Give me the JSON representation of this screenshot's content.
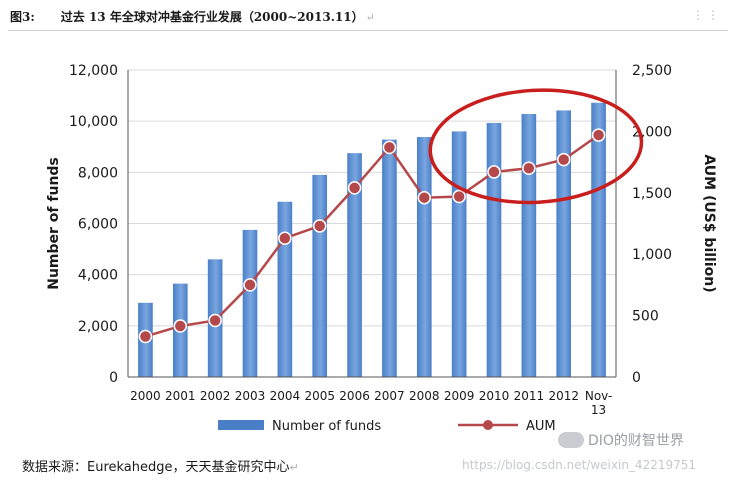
{
  "caption": {
    "figure": "图3:",
    "title": "过去 13 年全球对冲基金行业发展（2000~2013.11）",
    "mark": "↵"
  },
  "source": {
    "text": "数据来源：Eurekahedge，天天基金研究中心",
    "mark": "↵"
  },
  "watermark": {
    "text": "DIO的财智世界",
    "url": "https://blog.csdn.net/weixin_42219751"
  },
  "colors": {
    "bar": "#4a7fc8",
    "bar_light": "#7aa6df",
    "line": "#b5484b",
    "highlight": "#c81e1e",
    "grid": "#d9d9d9"
  },
  "chart_data": {
    "type": "bar",
    "categories": [
      "2000",
      "2001",
      "2002",
      "2003",
      "2004",
      "2005",
      "2006",
      "2007",
      "2008",
      "2009",
      "2010",
      "2011",
      "2012",
      "Nov-13"
    ],
    "ylabel": "Number of funds",
    "y2label": "AUM (US$ billion)",
    "ylim": [
      0,
      12000
    ],
    "y2lim": [
      0,
      2500
    ],
    "yticks": [
      "0",
      "2,000",
      "4,000",
      "6,000",
      "8,000",
      "10,000",
      "12,000"
    ],
    "y2ticks": [
      "0",
      "500",
      "1,000",
      "1,500",
      "2,000",
      "2,500"
    ],
    "grid": true,
    "legend_position": "bottom",
    "series": [
      {
        "name": "Number of funds",
        "type": "bar",
        "values": [
          2900,
          3650,
          4600,
          5750,
          6850,
          7900,
          8750,
          9280,
          9380,
          9600,
          9930,
          10280,
          10420,
          10720
        ]
      },
      {
        "name": "AUM",
        "type": "line",
        "axis": "right",
        "values": [
          330,
          415,
          460,
          750,
          1130,
          1230,
          1540,
          1870,
          1460,
          1470,
          1670,
          1700,
          1770,
          1970
        ]
      }
    ],
    "annotations": [
      {
        "type": "ellipse",
        "around": [
          "2009",
          "Nov-13"
        ],
        "color": "#c81e1e"
      }
    ]
  }
}
